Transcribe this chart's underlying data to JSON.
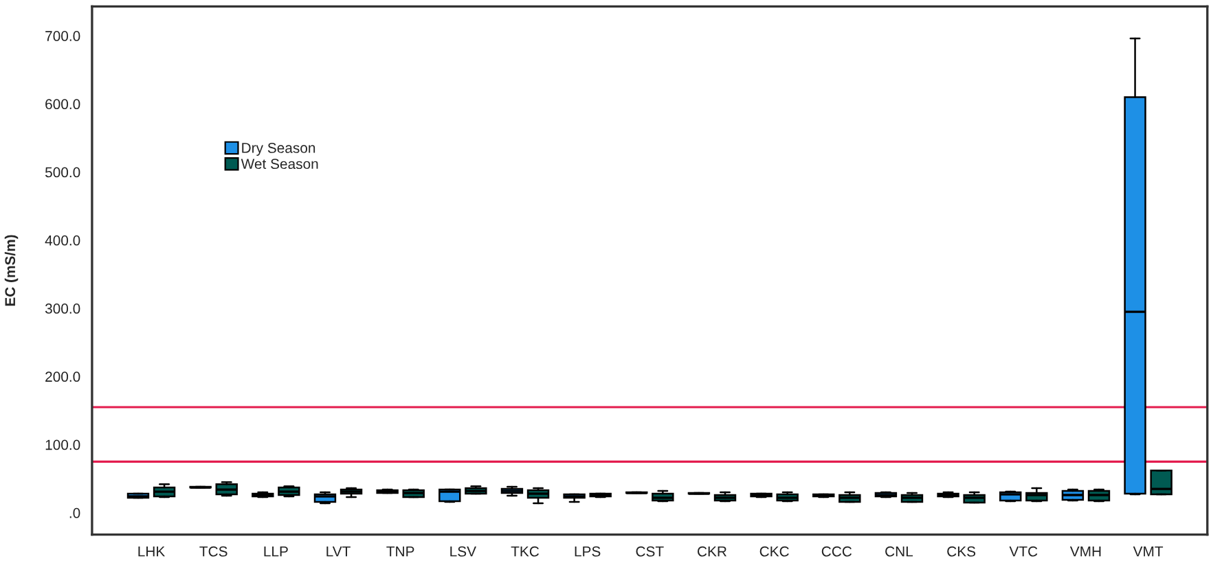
{
  "chart_data": {
    "type": "box",
    "ylabel": "EC (mS/m)",
    "categories": [
      "LHK",
      "TCS",
      "LLP",
      "LVT",
      "TNP",
      "LSV",
      "TKC",
      "LPS",
      "CST",
      "CKR",
      "CKC",
      "CCC",
      "CNL",
      "CKS",
      "VTC",
      "VMH",
      "VMT"
    ],
    "series": [
      {
        "name": "Dry Season",
        "color": "#1e90e6",
        "boxes": [
          {
            "low": 22,
            "q1": 22,
            "median": 24,
            "q3": 28,
            "high": 28
          },
          {
            "low": 37,
            "q1": 37,
            "median": 37,
            "q3": 38,
            "high": 38
          },
          {
            "low": 23,
            "q1": 24,
            "median": 26,
            "q3": 28,
            "high": 30
          },
          {
            "low": 14,
            "q1": 16,
            "median": 24,
            "q3": 27,
            "high": 30
          },
          {
            "low": 29,
            "q1": 29,
            "median": 31,
            "q3": 33,
            "high": 34
          },
          {
            "low": 16,
            "q1": 17,
            "median": 31,
            "q3": 34,
            "high": 34
          },
          {
            "low": 25,
            "q1": 29,
            "median": 32,
            "q3": 35,
            "high": 38
          },
          {
            "low": 16,
            "q1": 22,
            "median": 24,
            "q3": 27,
            "high": 27
          },
          {
            "low": 29,
            "q1": 29,
            "median": 29,
            "q3": 30,
            "high": 30
          },
          {
            "low": 28,
            "q1": 28,
            "median": 28,
            "q3": 29,
            "high": 29
          },
          {
            "low": 23,
            "q1": 24,
            "median": 26,
            "q3": 28,
            "high": 28
          },
          {
            "low": 23,
            "q1": 24,
            "median": 26,
            "q3": 27,
            "high": 27
          },
          {
            "low": 23,
            "q1": 24,
            "median": 26,
            "q3": 29,
            "high": 30
          },
          {
            "low": 23,
            "q1": 24,
            "median": 26,
            "q3": 28,
            "high": 30
          },
          {
            "low": 17,
            "q1": 18,
            "median": 27,
            "q3": 30,
            "high": 31
          },
          {
            "low": 18,
            "q1": 19,
            "median": 26,
            "q3": 32,
            "high": 34
          },
          {
            "low": 27,
            "q1": 28,
            "median": 295,
            "q3": 610,
            "high": 696
          }
        ]
      },
      {
        "name": "Wet Season",
        "color": "#005a52",
        "boxes": [
          {
            "low": 23,
            "q1": 24,
            "median": 31,
            "q3": 37,
            "high": 42
          },
          {
            "low": 25,
            "q1": 27,
            "median": 34,
            "q3": 42,
            "high": 45
          },
          {
            "low": 24,
            "q1": 26,
            "median": 31,
            "q3": 37,
            "high": 39
          },
          {
            "low": 23,
            "q1": 28,
            "median": 31,
            "q3": 34,
            "high": 36
          },
          {
            "low": 23,
            "q1": 23,
            "median": 29,
            "q3": 33,
            "high": 34
          },
          {
            "low": 28,
            "q1": 28,
            "median": 32,
            "q3": 36,
            "high": 39
          },
          {
            "low": 14,
            "q1": 22,
            "median": 28,
            "q3": 33,
            "high": 36
          },
          {
            "low": 23,
            "q1": 24,
            "median": 26,
            "q3": 28,
            "high": 28
          },
          {
            "low": 17,
            "q1": 18,
            "median": 22,
            "q3": 28,
            "high": 32
          },
          {
            "low": 17,
            "q1": 18,
            "median": 22,
            "q3": 26,
            "high": 30
          },
          {
            "low": 17,
            "q1": 18,
            "median": 22,
            "q3": 27,
            "high": 30
          },
          {
            "low": 16,
            "q1": 16,
            "median": 22,
            "q3": 26,
            "high": 30
          },
          {
            "low": 16,
            "q1": 16,
            "median": 22,
            "q3": 26,
            "high": 29
          },
          {
            "low": 15,
            "q1": 15,
            "median": 22,
            "q3": 26,
            "high": 30
          },
          {
            "low": 17,
            "q1": 18,
            "median": 26,
            "q3": 29,
            "high": 36
          },
          {
            "low": 17,
            "q1": 18,
            "median": 26,
            "q3": 32,
            "high": 34
          },
          {
            "low": 27,
            "q1": 27,
            "median": 35,
            "q3": 62,
            "high": 62
          }
        ]
      }
    ],
    "ylim": [
      -32,
      743
    ],
    "yticks": [
      {
        "value": 0,
        "label": ".0"
      },
      {
        "value": 100,
        "label": "100.0"
      },
      {
        "value": 200,
        "label": "200.0"
      },
      {
        "value": 300,
        "label": "300.0"
      },
      {
        "value": 400,
        "label": "400.0"
      },
      {
        "value": 500,
        "label": "500.0"
      },
      {
        "value": 600,
        "label": "600.0"
      },
      {
        "value": 700,
        "label": "700.0"
      }
    ],
    "ref_lines": [
      {
        "axis": "y",
        "value": 155,
        "color": "#e31c4e",
        "line_style": "solid"
      },
      {
        "axis": "y",
        "value": 75,
        "color": "#e31c4e",
        "line_style": "solid"
      }
    ],
    "legend": "top left"
  }
}
